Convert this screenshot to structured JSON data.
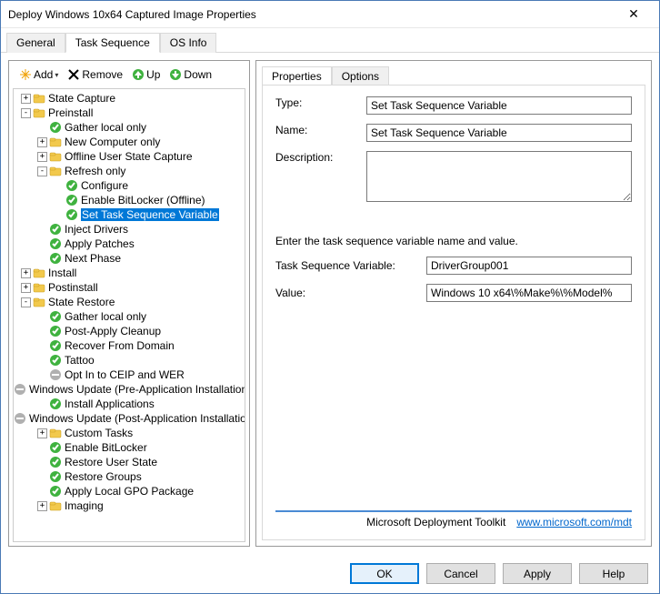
{
  "window": {
    "title": "Deploy Windows 10x64 Captured Image Properties"
  },
  "outerTabs": [
    "General",
    "Task Sequence",
    "OS Info"
  ],
  "outerActive": 1,
  "toolbar": {
    "add": "Add",
    "remove": "Remove",
    "up": "Up",
    "down": "Down"
  },
  "tree": [
    {
      "indent": 0,
      "tw": "+",
      "icon": "folder",
      "label": "State Capture"
    },
    {
      "indent": 0,
      "tw": "-",
      "icon": "folder",
      "label": "Preinstall"
    },
    {
      "indent": 1,
      "tw": "",
      "icon": "ok",
      "label": "Gather local only"
    },
    {
      "indent": 1,
      "tw": "+",
      "icon": "folder",
      "label": "New Computer only"
    },
    {
      "indent": 1,
      "tw": "+",
      "icon": "folder",
      "label": "Offline User State Capture"
    },
    {
      "indent": 1,
      "tw": "-",
      "icon": "folder",
      "label": "Refresh only"
    },
    {
      "indent": 2,
      "tw": "",
      "icon": "ok",
      "label": "Configure"
    },
    {
      "indent": 2,
      "tw": "",
      "icon": "ok",
      "label": "Enable BitLocker (Offline)"
    },
    {
      "indent": 2,
      "tw": "",
      "icon": "ok",
      "label": "Set Task Sequence Variable",
      "selected": true
    },
    {
      "indent": 1,
      "tw": "",
      "icon": "ok",
      "label": "Inject Drivers"
    },
    {
      "indent": 1,
      "tw": "",
      "icon": "ok",
      "label": "Apply Patches"
    },
    {
      "indent": 1,
      "tw": "",
      "icon": "ok",
      "label": "Next Phase"
    },
    {
      "indent": 0,
      "tw": "+",
      "icon": "folder",
      "label": "Install"
    },
    {
      "indent": 0,
      "tw": "+",
      "icon": "folder",
      "label": "Postinstall"
    },
    {
      "indent": 0,
      "tw": "-",
      "icon": "folder",
      "label": "State Restore"
    },
    {
      "indent": 1,
      "tw": "",
      "icon": "ok",
      "label": "Gather local only"
    },
    {
      "indent": 1,
      "tw": "",
      "icon": "ok",
      "label": "Post-Apply Cleanup"
    },
    {
      "indent": 1,
      "tw": "",
      "icon": "ok",
      "label": "Recover From Domain"
    },
    {
      "indent": 1,
      "tw": "",
      "icon": "ok",
      "label": "Tattoo"
    },
    {
      "indent": 1,
      "tw": "",
      "icon": "disabled",
      "label": "Opt In to CEIP and WER"
    },
    {
      "indent": 1,
      "tw": "",
      "icon": "disabled",
      "label": "Windows Update (Pre-Application Installation)"
    },
    {
      "indent": 1,
      "tw": "",
      "icon": "ok",
      "label": "Install Applications"
    },
    {
      "indent": 1,
      "tw": "",
      "icon": "disabled",
      "label": "Windows Update (Post-Application Installation)"
    },
    {
      "indent": 1,
      "tw": "+",
      "icon": "folder",
      "label": "Custom Tasks"
    },
    {
      "indent": 1,
      "tw": "",
      "icon": "ok",
      "label": "Enable BitLocker"
    },
    {
      "indent": 1,
      "tw": "",
      "icon": "ok",
      "label": "Restore User State"
    },
    {
      "indent": 1,
      "tw": "",
      "icon": "ok",
      "label": "Restore Groups"
    },
    {
      "indent": 1,
      "tw": "",
      "icon": "ok",
      "label": "Apply Local GPO Package"
    },
    {
      "indent": 1,
      "tw": "+",
      "icon": "folder",
      "label": "Imaging"
    }
  ],
  "innerTabs": [
    "Properties",
    "Options"
  ],
  "innerActive": 0,
  "form": {
    "typeLabel": "Type:",
    "typeValue": "Set Task Sequence Variable",
    "nameLabel": "Name:",
    "nameValue": "Set Task Sequence Variable",
    "descLabel": "Description:",
    "instr": "Enter the task sequence variable name and value.",
    "tsvLabel": "Task Sequence Variable:",
    "tsvValue": "DriverGroup001",
    "valLabel": "Value:",
    "valValue": "Windows 10 x64\\%Make%\\%Model%"
  },
  "brand": {
    "text": "Microsoft Deployment Toolkit",
    "link": "www.microsoft.com/mdt"
  },
  "buttons": {
    "ok": "OK",
    "cancel": "Cancel",
    "apply": "Apply",
    "help": "Help"
  },
  "colors": {
    "accent": "#0078d7",
    "ok": "#3fb23f",
    "disabled": "#b0b0b0",
    "folder": "#f2c94c",
    "up": "#3fb23f",
    "down": "#3fb23f"
  }
}
